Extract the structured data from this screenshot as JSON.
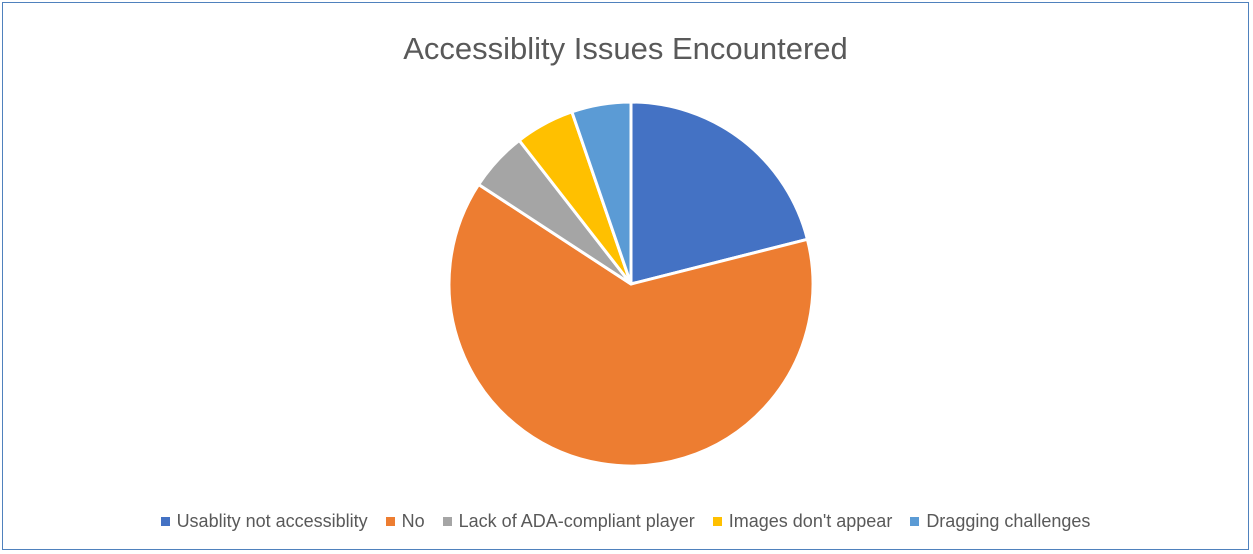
{
  "chart_data": {
    "type": "pie",
    "title": "Accessiblity Issues Encountered",
    "categories": [
      "Usablity not accessiblity",
      "No",
      "Lack of ADA-compliant player",
      "Images don't appear",
      "Dragging challenges"
    ],
    "values": [
      4,
      12,
      1,
      1,
      1
    ],
    "colors": [
      "#4472c4",
      "#ed7d31",
      "#a5a5a5",
      "#ffc000",
      "#5b9bd5"
    ],
    "legend_position": "bottom",
    "start_angle_deg": 0,
    "direction": "clockwise"
  }
}
